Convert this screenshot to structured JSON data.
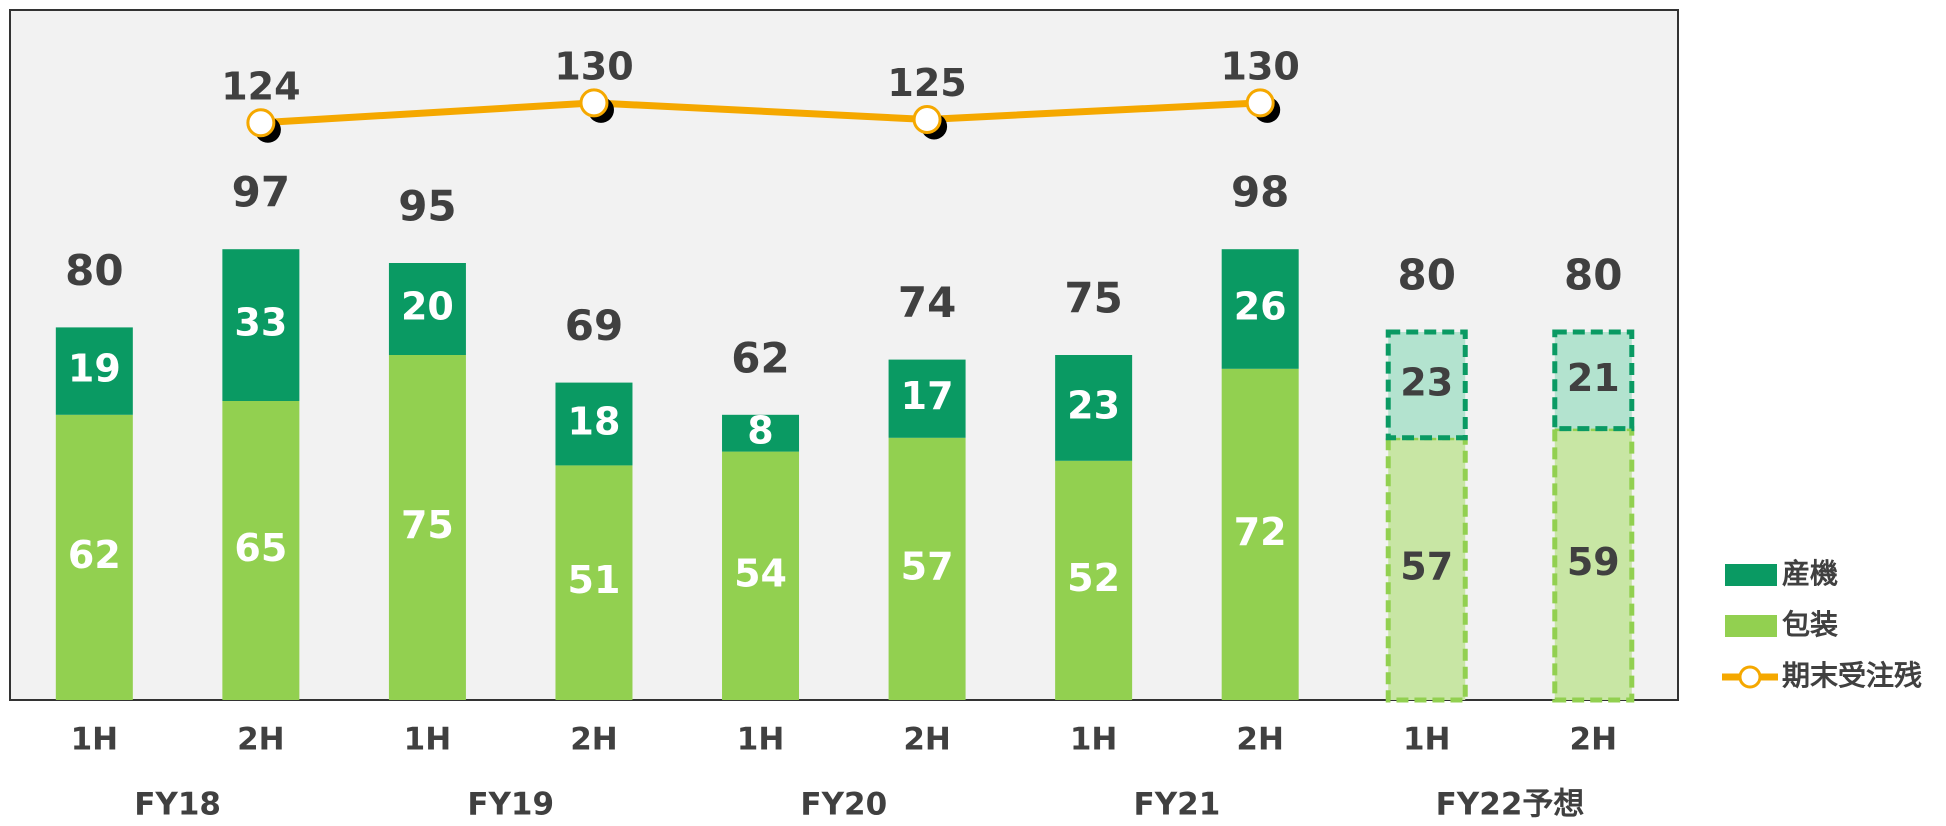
{
  "chart_data": {
    "type": "bar",
    "stacked": true,
    "categories": [
      "1H",
      "2H",
      "1H",
      "2H",
      "1H",
      "2H",
      "1H",
      "2H",
      "1H",
      "2H"
    ],
    "groups": [
      "FY18",
      "FY19",
      "FY20",
      "FY21",
      "FY22予想"
    ],
    "forecast": [
      false,
      false,
      false,
      false,
      false,
      false,
      false,
      false,
      true,
      true
    ],
    "ylim": [
      0,
      150
    ],
    "y2lim": [
      -50,
      158
    ],
    "series": [
      {
        "name": "包装",
        "color": "#92d050",
        "forecast_color": "#c8e6a4",
        "values": [
          62,
          65,
          75,
          51,
          54,
          57,
          52,
          72,
          57,
          59
        ]
      },
      {
        "name": "産機",
        "color": "#0a9a63",
        "forecast_color": "#b3e3cf",
        "values": [
          19,
          33,
          20,
          18,
          8,
          17,
          23,
          26,
          23,
          21
        ]
      },
      {
        "name": "期末受注残",
        "type": "line",
        "axis": "y2",
        "color": "#f5a800",
        "values": [
          null,
          124,
          null,
          130,
          null,
          125,
          null,
          130,
          null,
          null
        ]
      }
    ],
    "totals": [
      80,
      97,
      95,
      69,
      62,
      74,
      75,
      98,
      80,
      80
    ]
  }
}
